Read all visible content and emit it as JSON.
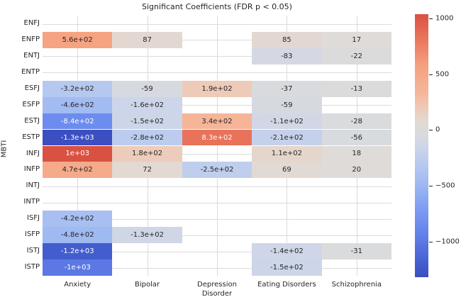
{
  "chart_data": {
    "type": "heatmap",
    "title": "Significant Coefficients (FDR p < 0.05)",
    "xlabel": "",
    "ylabel": "MBTI",
    "rows": [
      "ENFJ",
      "ENFP",
      "ENTJ",
      "ENTP",
      "ESFJ",
      "ESFP",
      "ESTJ",
      "ESTP",
      "INFJ",
      "INFP",
      "INTJ",
      "INTP",
      "ISFJ",
      "ISFP",
      "ISTJ",
      "ISTP"
    ],
    "columns": [
      "Anxiety",
      "Bipolar",
      "Depression Disorder",
      "Eating Disorders",
      "Schizophrenia"
    ],
    "xtick_labels": [
      "Anxiety",
      "Bipolar",
      "Depression\nDisorder",
      "Eating Disorders",
      "Schizophrenia"
    ],
    "colormap": "coolwarm",
    "center": 0,
    "vmin": -1318,
    "vmax": 1036,
    "grid": true,
    "grid_color": "#dbdbdb",
    "text_color": "#262626",
    "annot_white_color": "#ffffff",
    "colormap_anchors": [
      [
        0.0,
        "#3b4ec2"
      ],
      [
        0.05,
        "#445fd1"
      ],
      [
        0.12,
        "#5c78e4"
      ],
      [
        0.18,
        "#6c8cee"
      ],
      [
        0.25,
        "#85a3f1"
      ],
      [
        0.32,
        "#a0baf2"
      ],
      [
        0.38,
        "#b6c9f0"
      ],
      [
        0.44,
        "#ccd5e9"
      ],
      [
        0.5,
        "#dddcda"
      ],
      [
        0.535,
        "#e3d8d0"
      ],
      [
        0.57,
        "#eecbba"
      ],
      [
        0.63,
        "#f6b498"
      ],
      [
        0.715,
        "#f5a280"
      ],
      [
        0.82,
        "#e77058"
      ],
      [
        0.893,
        "#d95241"
      ],
      [
        1.0,
        "#b40426"
      ]
    ],
    "colorbar_ticks": [
      {
        "value": 1000,
        "label": "1000"
      },
      {
        "value": 500,
        "label": "500"
      },
      {
        "value": 0,
        "label": "0"
      },
      {
        "value": -500,
        "label": "−500"
      },
      {
        "value": -1000,
        "label": "−1000"
      }
    ],
    "cells": [
      {
        "row": "ENFP",
        "col": "Anxiety",
        "value": 560,
        "label": "5.6e+02",
        "text": "dark"
      },
      {
        "row": "ENFP",
        "col": "Bipolar",
        "value": 87,
        "label": "87",
        "text": "dark"
      },
      {
        "row": "ENFP",
        "col": "Eating Disorders",
        "value": 85,
        "label": "85",
        "text": "dark"
      },
      {
        "row": "ENFP",
        "col": "Schizophrenia",
        "value": 17,
        "label": "17",
        "text": "dark"
      },
      {
        "row": "ENTJ",
        "col": "Eating Disorders",
        "value": -83,
        "label": "-83",
        "text": "dark"
      },
      {
        "row": "ENTJ",
        "col": "Schizophrenia",
        "value": -22,
        "label": "-22",
        "text": "dark"
      },
      {
        "row": "ESFJ",
        "col": "Anxiety",
        "value": -320,
        "label": "-3.2e+02",
        "text": "dark"
      },
      {
        "row": "ESFJ",
        "col": "Bipolar",
        "value": -59,
        "label": "-59",
        "text": "dark"
      },
      {
        "row": "ESFJ",
        "col": "Depression Disorder",
        "value": 190,
        "label": "1.9e+02",
        "text": "dark"
      },
      {
        "row": "ESFJ",
        "col": "Eating Disorders",
        "value": -37,
        "label": "-37",
        "text": "dark"
      },
      {
        "row": "ESFJ",
        "col": "Schizophrenia",
        "value": -13,
        "label": "-13",
        "text": "dark"
      },
      {
        "row": "ESFP",
        "col": "Anxiety",
        "value": -460,
        "label": "-4.6e+02",
        "text": "dark"
      },
      {
        "row": "ESFP",
        "col": "Bipolar",
        "value": -160,
        "label": "-1.6e+02",
        "text": "dark"
      },
      {
        "row": "ESFP",
        "col": "Eating Disorders",
        "value": -59,
        "label": "-59",
        "text": "dark"
      },
      {
        "row": "ESTJ",
        "col": "Anxiety",
        "value": -840,
        "label": "-8.4e+02",
        "text": "white"
      },
      {
        "row": "ESTJ",
        "col": "Bipolar",
        "value": -150,
        "label": "-1.5e+02",
        "text": "dark"
      },
      {
        "row": "ESTJ",
        "col": "Depression Disorder",
        "value": 340,
        "label": "3.4e+02",
        "text": "dark"
      },
      {
        "row": "ESTJ",
        "col": "Eating Disorders",
        "value": -110,
        "label": "-1.1e+02",
        "text": "dark"
      },
      {
        "row": "ESTJ",
        "col": "Schizophrenia",
        "value": -28,
        "label": "-28",
        "text": "dark"
      },
      {
        "row": "ESTP",
        "col": "Anxiety",
        "value": -1318,
        "label": "-1.3e+03",
        "text": "white"
      },
      {
        "row": "ESTP",
        "col": "Bipolar",
        "value": -280,
        "label": "-2.8e+02",
        "text": "dark"
      },
      {
        "row": "ESTP",
        "col": "Depression Disorder",
        "value": 830,
        "label": "8.3e+02",
        "text": "white"
      },
      {
        "row": "ESTP",
        "col": "Eating Disorders",
        "value": -210,
        "label": "-2.1e+02",
        "text": "dark"
      },
      {
        "row": "ESTP",
        "col": "Schizophrenia",
        "value": -56,
        "label": "-56",
        "text": "dark"
      },
      {
        "row": "INFJ",
        "col": "Anxiety",
        "value": 1036,
        "label": "1e+03",
        "text": "white"
      },
      {
        "row": "INFJ",
        "col": "Bipolar",
        "value": 180,
        "label": "1.8e+02",
        "text": "dark"
      },
      {
        "row": "INFJ",
        "col": "Eating Disorders",
        "value": 110,
        "label": "1.1e+02",
        "text": "dark"
      },
      {
        "row": "INFJ",
        "col": "Schizophrenia",
        "value": 18,
        "label": "18",
        "text": "dark"
      },
      {
        "row": "INFP",
        "col": "Anxiety",
        "value": 470,
        "label": "4.7e+02",
        "text": "dark"
      },
      {
        "row": "INFP",
        "col": "Bipolar",
        "value": 72,
        "label": "72",
        "text": "dark"
      },
      {
        "row": "INFP",
        "col": "Depression Disorder",
        "value": -250,
        "label": "-2.5e+02",
        "text": "dark"
      },
      {
        "row": "INFP",
        "col": "Eating Disorders",
        "value": 69,
        "label": "69",
        "text": "dark"
      },
      {
        "row": "INFP",
        "col": "Schizophrenia",
        "value": 20,
        "label": "20",
        "text": "dark"
      },
      {
        "row": "ISFJ",
        "col": "Anxiety",
        "value": -420,
        "label": "-4.2e+02",
        "text": "dark"
      },
      {
        "row": "ISFP",
        "col": "Anxiety",
        "value": -480,
        "label": "-4.8e+02",
        "text": "dark"
      },
      {
        "row": "ISFP",
        "col": "Bipolar",
        "value": -130,
        "label": "-1.3e+02",
        "text": "dark"
      },
      {
        "row": "ISTJ",
        "col": "Anxiety",
        "value": -1200,
        "label": "-1.2e+03",
        "text": "white"
      },
      {
        "row": "ISTJ",
        "col": "Eating Disorders",
        "value": -140,
        "label": "-1.4e+02",
        "text": "dark"
      },
      {
        "row": "ISTJ",
        "col": "Schizophrenia",
        "value": -31,
        "label": "-31",
        "text": "dark"
      },
      {
        "row": "ISTP",
        "col": "Anxiety",
        "value": -1000,
        "label": "-1e+03",
        "text": "white"
      },
      {
        "row": "ISTP",
        "col": "Eating Disorders",
        "value": -150,
        "label": "-1.5e+02",
        "text": "dark"
      }
    ]
  }
}
